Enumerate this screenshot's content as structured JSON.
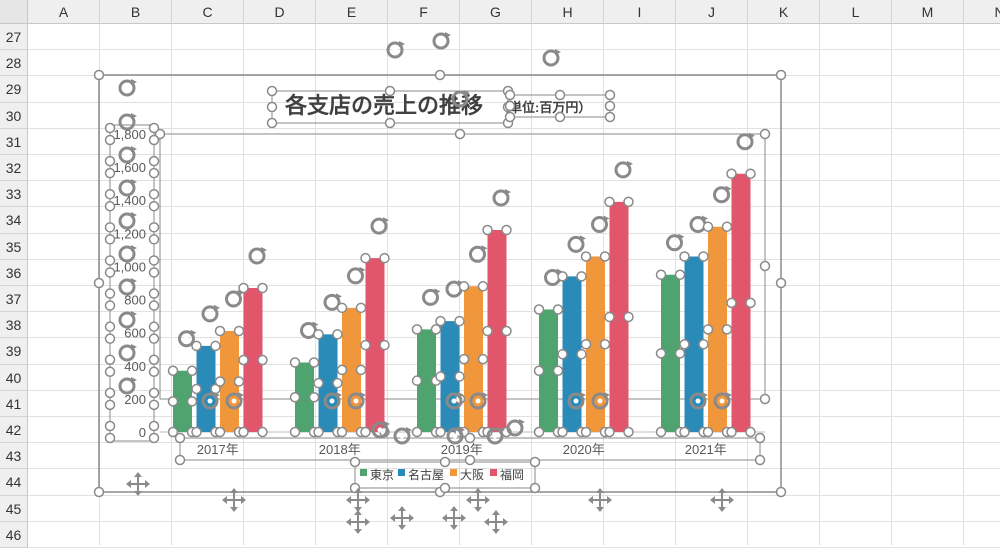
{
  "spreadsheet": {
    "columns": [
      "A",
      "B",
      "C",
      "D",
      "E",
      "F",
      "G",
      "H",
      "I",
      "J",
      "K",
      "L",
      "M",
      "N"
    ],
    "rows": [
      "27",
      "28",
      "29",
      "30",
      "31",
      "32",
      "33",
      "34",
      "35",
      "36",
      "37",
      "38",
      "39",
      "40",
      "41",
      "42",
      "43",
      "44",
      "45",
      "46"
    ]
  },
  "colors": {
    "tokyo": "#4ea36f",
    "nagoya": "#2a8ab8",
    "osaka": "#f0973c",
    "fukuoka": "#e2566b",
    "handle": "#8a8a8a"
  },
  "chart_data": {
    "type": "bar",
    "title": "各支店の売上の推移",
    "subtitle": "（単位:百万円）",
    "categories": [
      "2017年",
      "2018年",
      "2019年",
      "2020年",
      "2021年"
    ],
    "series": [
      {
        "name": "東京",
        "values": [
          370,
          420,
          620,
          740,
          950
        ]
      },
      {
        "name": "名古屋",
        "values": [
          520,
          590,
          670,
          940,
          1060
        ]
      },
      {
        "name": "大阪",
        "values": [
          610,
          750,
          880,
          1060,
          1240
        ]
      },
      {
        "name": "福岡",
        "values": [
          870,
          1050,
          1220,
          1390,
          1560
        ]
      }
    ],
    "yticks": [
      "0",
      "200",
      "400",
      "600",
      "800",
      "1,000",
      "1,200",
      "1,400",
      "1,600",
      "1,800"
    ],
    "ylim": [
      0,
      1800
    ],
    "grid": false,
    "legend": "bottom"
  }
}
